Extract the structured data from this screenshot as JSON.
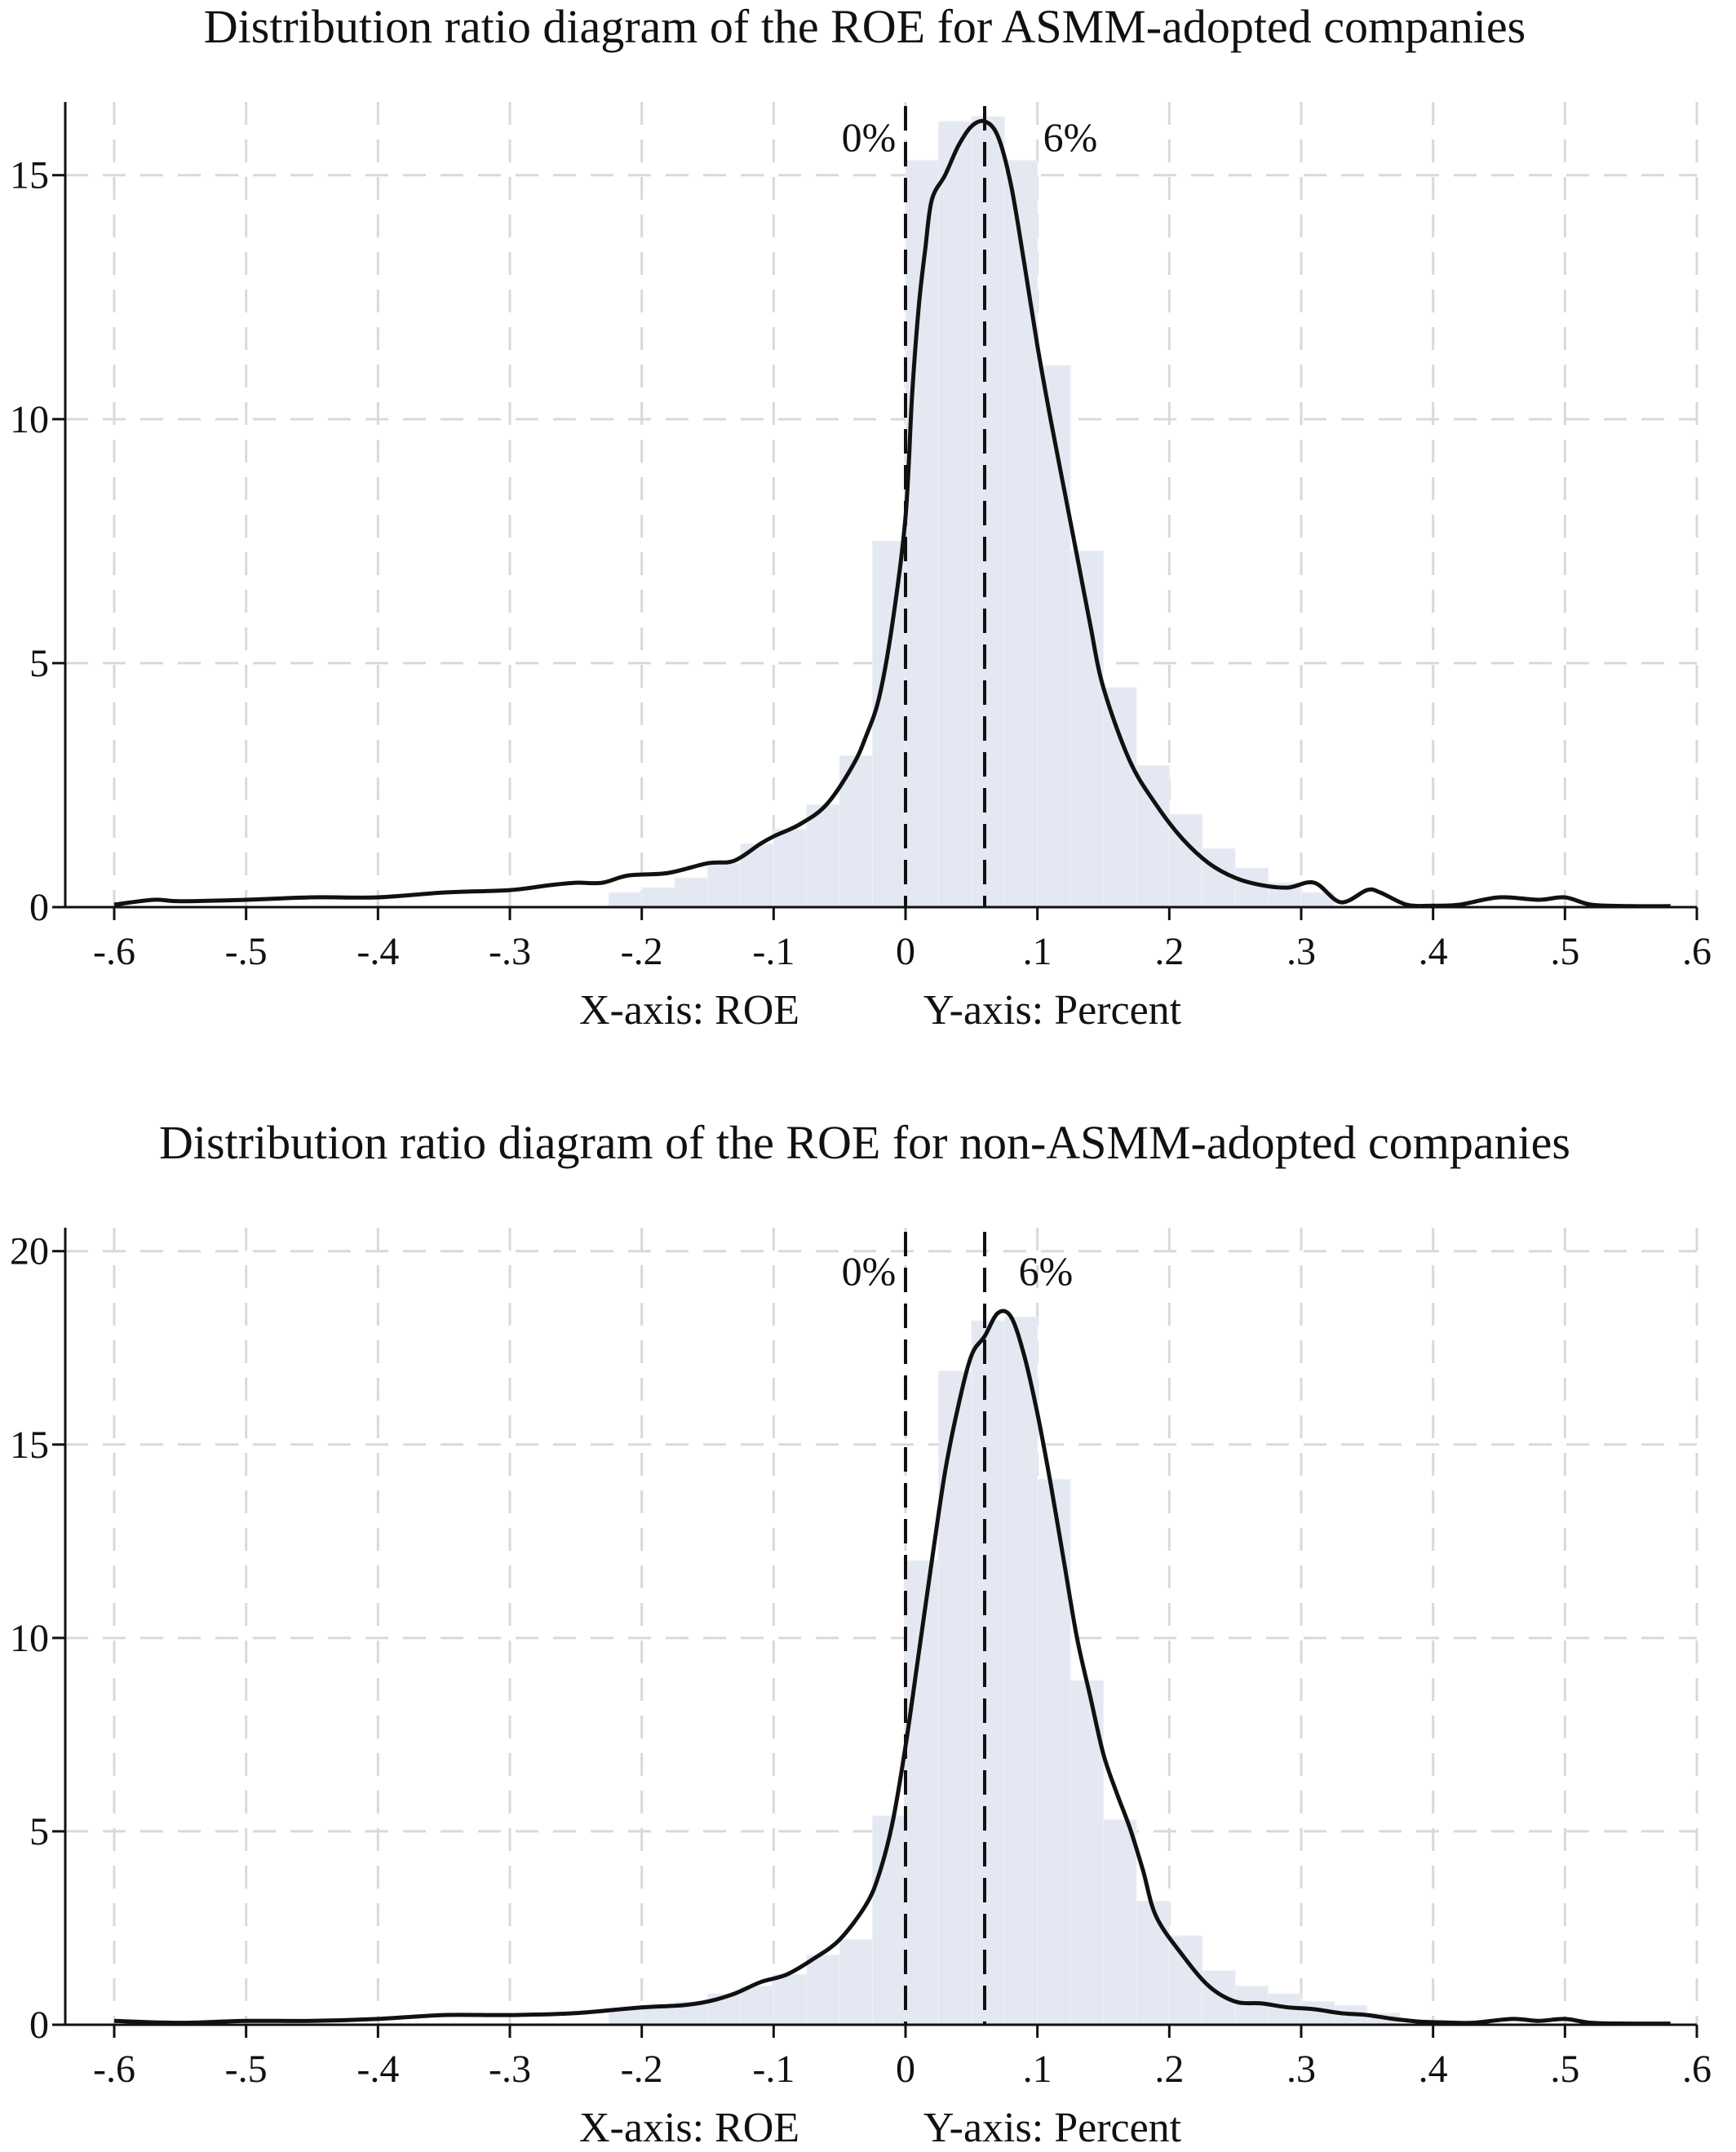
{
  "chart_data": [
    {
      "type": "bar",
      "title": "Distribution ratio diagram of the ROE for ASMM-adopted companies",
      "xlabel": "X-axis: ROE",
      "ylabel": "Y-axis: Percent",
      "xlim": [
        -0.6,
        0.6
      ],
      "ylim": [
        0,
        16.5
      ],
      "x_ticks": [
        -0.6,
        -0.5,
        -0.4,
        -0.3,
        -0.2,
        -0.1,
        0,
        0.1,
        0.2,
        0.3,
        0.4,
        0.5,
        0.6
      ],
      "x_tick_labels": [
        "-.6",
        "-.5",
        "-.4",
        "-.3",
        "-.2",
        "-.1",
        "0",
        ".1",
        ".2",
        ".3",
        ".4",
        ".5",
        ".6"
      ],
      "y_ticks": [
        0,
        5,
        10,
        15
      ],
      "y_tick_labels": [
        "0",
        "5",
        "10",
        "15"
      ],
      "grid": true,
      "bin_width": 0.025,
      "histogram": {
        "x": [
          -0.2125,
          -0.1875,
          -0.1625,
          -0.1375,
          -0.1125,
          -0.0875,
          -0.0625,
          -0.0375,
          -0.0125,
          0.0125,
          0.0375,
          0.0625,
          0.0875,
          0.1125,
          0.1375,
          0.1625,
          0.1875,
          0.2125,
          0.2375,
          0.2625,
          0.2875,
          0.3125
        ],
        "values": [
          0.3,
          0.4,
          0.6,
          0.9,
          1.3,
          1.6,
          2.1,
          3.1,
          7.5,
          15.3,
          16.1,
          16.2,
          15.3,
          11.1,
          7.3,
          4.5,
          2.9,
          1.9,
          1.2,
          0.8,
          0.5,
          0.3
        ]
      },
      "density_curve": {
        "x": [
          -0.6,
          -0.57,
          -0.55,
          -0.5,
          -0.45,
          -0.4,
          -0.35,
          -0.3,
          -0.27,
          -0.25,
          -0.23,
          -0.21,
          -0.18,
          -0.15,
          -0.13,
          -0.11,
          -0.1,
          -0.08,
          -0.06,
          -0.04,
          -0.03,
          -0.02,
          -0.01,
          0.0,
          0.005,
          0.01,
          0.015,
          0.02,
          0.03,
          0.04,
          0.05,
          0.06,
          0.07,
          0.08,
          0.09,
          0.1,
          0.11,
          0.12,
          0.13,
          0.14,
          0.15,
          0.17,
          0.19,
          0.21,
          0.23,
          0.25,
          0.27,
          0.29,
          0.31,
          0.33,
          0.35,
          0.36,
          0.38,
          0.4,
          0.42,
          0.45,
          0.48,
          0.5,
          0.52,
          0.55,
          0.58
        ],
        "values": [
          0.05,
          0.15,
          0.12,
          0.15,
          0.2,
          0.2,
          0.3,
          0.35,
          0.45,
          0.5,
          0.5,
          0.65,
          0.7,
          0.9,
          0.95,
          1.3,
          1.45,
          1.7,
          2.1,
          2.9,
          3.5,
          4.3,
          5.8,
          8.0,
          10.5,
          12.3,
          13.5,
          14.5,
          15.0,
          15.6,
          16.0,
          16.1,
          15.8,
          14.8,
          13.2,
          11.5,
          10.0,
          8.6,
          7.2,
          5.8,
          4.5,
          3.0,
          2.1,
          1.4,
          0.9,
          0.6,
          0.45,
          0.4,
          0.5,
          0.1,
          0.35,
          0.3,
          0.05,
          0.03,
          0.05,
          0.2,
          0.15,
          0.2,
          0.05,
          0.02,
          0.02
        ]
      },
      "reference_lines": [
        {
          "x": 0.0,
          "label": "0%",
          "style": "dashed"
        },
        {
          "x": 0.06,
          "label": "6%",
          "style": "dashed"
        }
      ]
    },
    {
      "type": "bar",
      "title": "Distribution ratio diagram of the ROE for non-ASMM-adopted companies",
      "xlabel": "X-axis: ROE",
      "ylabel": "Y-axis: Percent",
      "xlim": [
        -0.6,
        0.6
      ],
      "ylim": [
        0,
        20.5
      ],
      "x_ticks": [
        -0.6,
        -0.5,
        -0.4,
        -0.3,
        -0.2,
        -0.1,
        0,
        0.1,
        0.2,
        0.3,
        0.4,
        0.5,
        0.6
      ],
      "x_tick_labels": [
        "-.6",
        "-.5",
        "-.4",
        "-.3",
        "-.2",
        "-.1",
        "0",
        ".1",
        ".2",
        ".3",
        ".4",
        ".5",
        ".6"
      ],
      "y_ticks": [
        0,
        5,
        10,
        15,
        20
      ],
      "y_tick_labels": [
        "0",
        "5",
        "10",
        "15",
        "20"
      ],
      "grid": true,
      "bin_width": 0.025,
      "histogram": {
        "x": [
          -0.2125,
          -0.1875,
          -0.1625,
          -0.1375,
          -0.1125,
          -0.0875,
          -0.0625,
          -0.0375,
          -0.0125,
          0.0125,
          0.0375,
          0.0625,
          0.0875,
          0.1125,
          0.1375,
          0.1625,
          0.1875,
          0.2125,
          0.2375,
          0.2625,
          0.2875,
          0.3125,
          0.3375,
          0.3625
        ],
        "values": [
          0.4,
          0.5,
          0.6,
          0.8,
          1.0,
          1.3,
          1.8,
          2.2,
          5.4,
          12.0,
          16.9,
          18.2,
          18.3,
          14.1,
          8.9,
          5.3,
          3.2,
          2.3,
          1.4,
          1.0,
          0.8,
          0.6,
          0.5,
          0.3
        ]
      },
      "density_curve": {
        "x": [
          -0.6,
          -0.55,
          -0.5,
          -0.45,
          -0.4,
          -0.35,
          -0.3,
          -0.25,
          -0.2,
          -0.17,
          -0.15,
          -0.13,
          -0.11,
          -0.09,
          -0.07,
          -0.05,
          -0.03,
          -0.02,
          -0.01,
          0.0,
          0.01,
          0.02,
          0.03,
          0.04,
          0.05,
          0.06,
          0.07,
          0.08,
          0.09,
          0.1,
          0.11,
          0.12,
          0.13,
          0.14,
          0.15,
          0.16,
          0.17,
          0.18,
          0.19,
          0.21,
          0.23,
          0.25,
          0.27,
          0.29,
          0.31,
          0.33,
          0.35,
          0.37,
          0.39,
          0.41,
          0.43,
          0.46,
          0.48,
          0.5,
          0.52,
          0.55,
          0.58
        ],
        "values": [
          0.1,
          0.05,
          0.1,
          0.1,
          0.15,
          0.25,
          0.25,
          0.3,
          0.45,
          0.5,
          0.6,
          0.8,
          1.1,
          1.3,
          1.7,
          2.2,
          3.1,
          3.9,
          5.2,
          7.2,
          9.6,
          12.0,
          14.3,
          16.0,
          17.3,
          17.8,
          18.4,
          18.3,
          17.3,
          15.8,
          14.0,
          12.0,
          10.0,
          8.5,
          7.0,
          6.0,
          5.1,
          4.0,
          2.8,
          1.8,
          1.0,
          0.6,
          0.55,
          0.45,
          0.4,
          0.3,
          0.25,
          0.15,
          0.08,
          0.06,
          0.05,
          0.15,
          0.1,
          0.15,
          0.05,
          0.03,
          0.03
        ]
      },
      "reference_lines": [
        {
          "x": 0.0,
          "label": "0%",
          "style": "dashed"
        },
        {
          "x": 0.06,
          "label": "6%",
          "style": "dashed"
        }
      ]
    }
  ]
}
